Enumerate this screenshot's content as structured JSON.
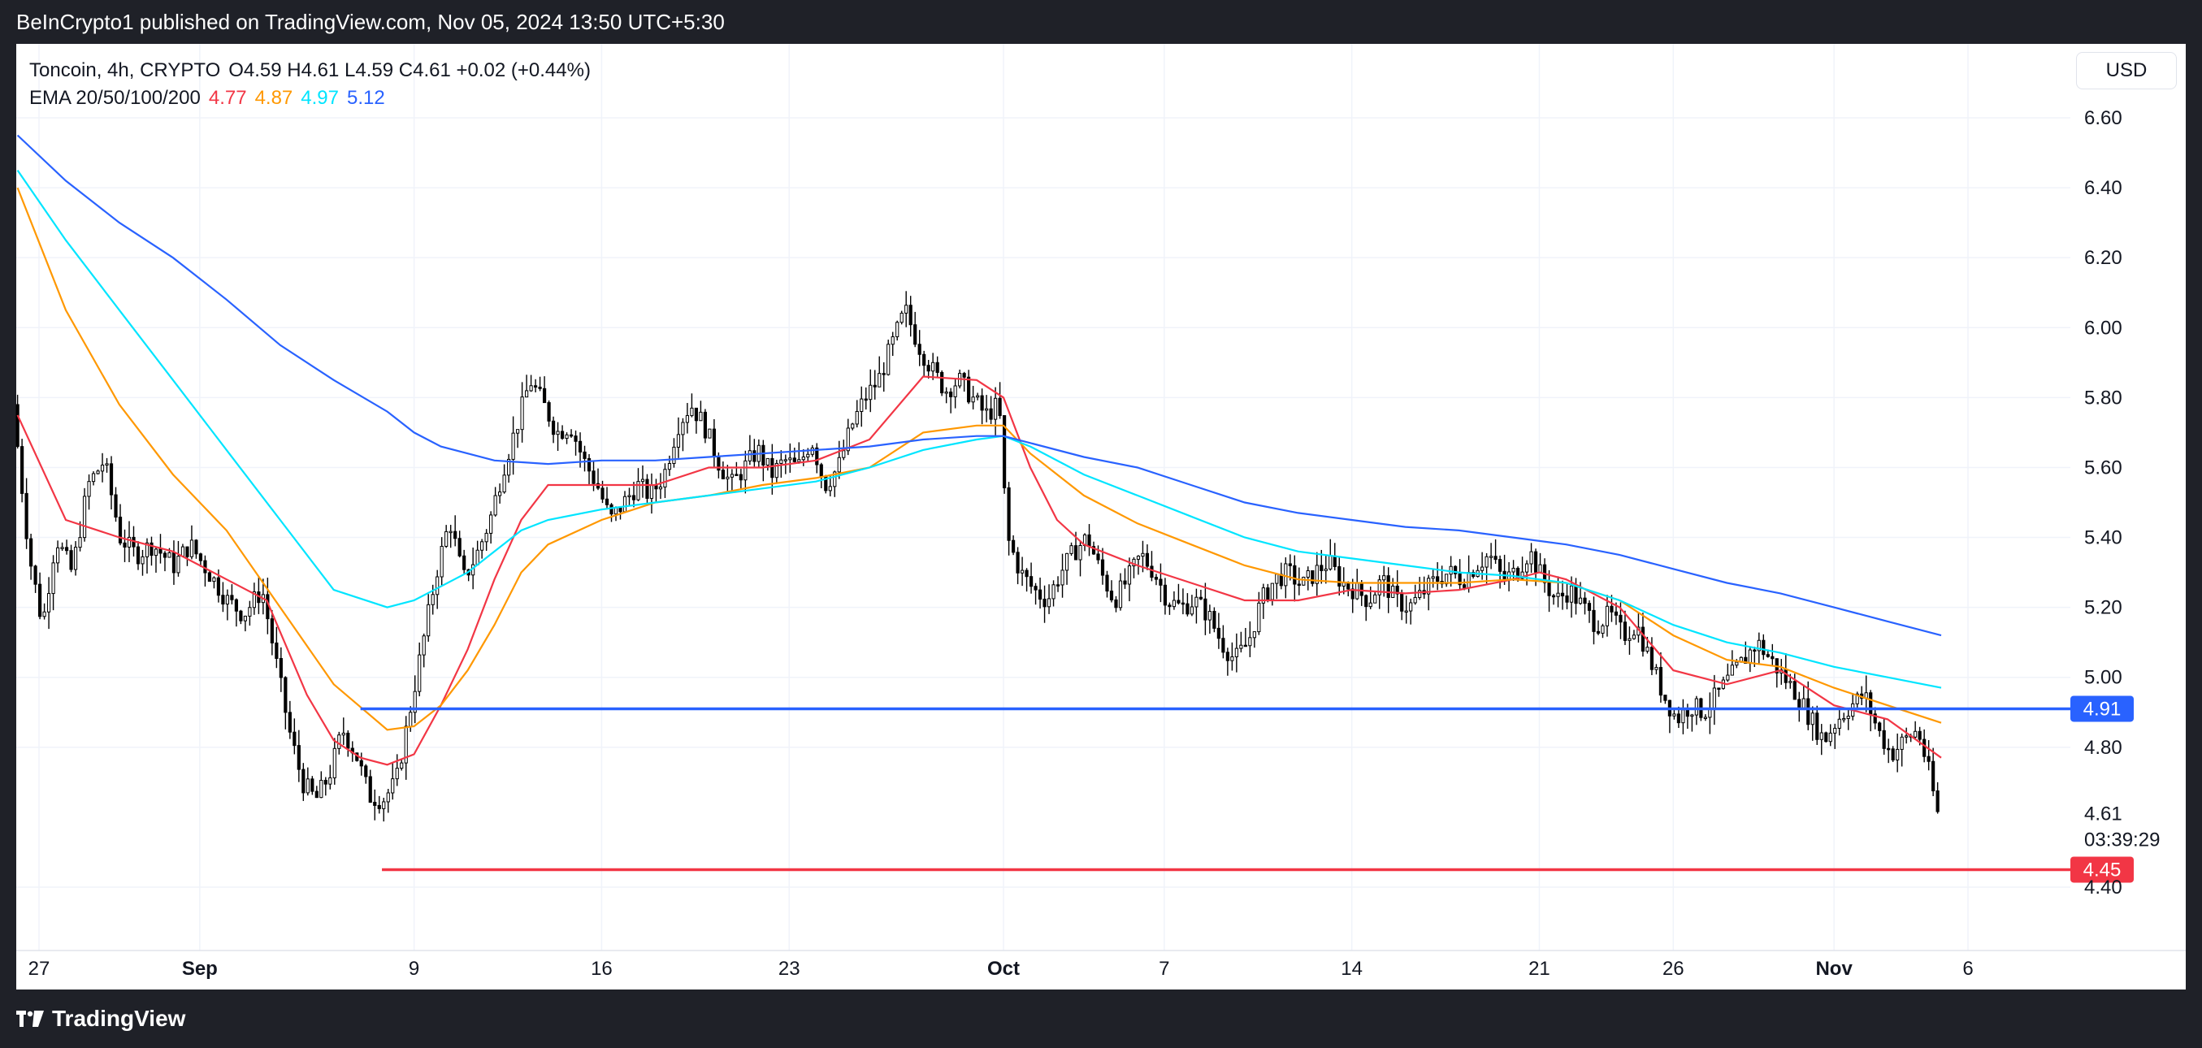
{
  "header": {
    "publisher": "BeInCrypto1 published on TradingView.com, Nov 05, 2024 13:50 UTC+5:30"
  },
  "footer": {
    "brand": "TradingView"
  },
  "toolbar": {
    "currency_label": "USD"
  },
  "legend": {
    "symbol": "Toncoin, 4h, CRYPTO",
    "open_label": "O",
    "open": "4.59",
    "high_label": "H",
    "high": "4.61",
    "low_label": "L",
    "low": "4.59",
    "close_label": "C",
    "close": "4.61",
    "change": "+0.02 (+0.44%)",
    "ema_label": "EMA 20/50/100/200",
    "ema20": "4.77",
    "ema50": "4.87",
    "ema100": "4.97",
    "ema200": "5.12"
  },
  "colors": {
    "ema20": "#f23645",
    "ema50": "#ff9800",
    "ema100": "#00e5ff",
    "ema200": "#2962ff",
    "support_line": "#2962ff",
    "support_low_line": "#f23645",
    "candle": "#000000"
  },
  "chart_data": {
    "type": "candlestick",
    "title": "Toncoin, 4h, CRYPTO",
    "currency": "USD",
    "y_ticks": [
      "6.60",
      "6.40",
      "6.20",
      "6.00",
      "5.80",
      "5.60",
      "5.40",
      "5.20",
      "5.00",
      "4.80",
      "4.40"
    ],
    "ylim": [
      4.32,
      6.62
    ],
    "x_ticks": [
      {
        "label": "27",
        "day": -5,
        "bold": false
      },
      {
        "label": "Sep",
        "day": 1,
        "bold": true
      },
      {
        "label": "9",
        "day": 9,
        "bold": false
      },
      {
        "label": "16",
        "day": 16,
        "bold": false
      },
      {
        "label": "23",
        "day": 23,
        "bold": false
      },
      {
        "label": "Oct",
        "day": 31,
        "bold": true
      },
      {
        "label": "7",
        "day": 37,
        "bold": false
      },
      {
        "label": "14",
        "day": 44,
        "bold": false
      },
      {
        "label": "21",
        "day": 51,
        "bold": false
      },
      {
        "label": "26",
        "day": 56,
        "bold": false
      },
      {
        "label": "Nov",
        "day": 62,
        "bold": true
      },
      {
        "label": "6",
        "day": 67,
        "bold": false
      }
    ],
    "price_path": [
      [
        -5.8,
        5.78
      ],
      [
        -5.2,
        5.35
      ],
      [
        -4.7,
        5.15
      ],
      [
        -4.2,
        5.4
      ],
      [
        -3.6,
        5.3
      ],
      [
        -3.0,
        5.55
      ],
      [
        -2.4,
        5.62
      ],
      [
        -1.8,
        5.4
      ],
      [
        -1.2,
        5.35
      ],
      [
        -0.6,
        5.38
      ],
      [
        0.2,
        5.32
      ],
      [
        0.8,
        5.38
      ],
      [
        1.5,
        5.3
      ],
      [
        2.2,
        5.22
      ],
      [
        2.8,
        5.18
      ],
      [
        3.5,
        5.25
      ],
      [
        4.0,
        5.05
      ],
      [
        4.5,
        4.85
      ],
      [
        5.0,
        4.7
      ],
      [
        5.5,
        4.65
      ],
      [
        6.0,
        4.72
      ],
      [
        6.5,
        4.85
      ],
      [
        7.0,
        4.78
      ],
      [
        7.5,
        4.66
      ],
      [
        8.0,
        4.65
      ],
      [
        8.5,
        4.7
      ],
      [
        9.0,
        4.9
      ],
      [
        9.5,
        5.1
      ],
      [
        10.0,
        5.3
      ],
      [
        10.5,
        5.45
      ],
      [
        11.0,
        5.28
      ],
      [
        11.5,
        5.35
      ],
      [
        12.0,
        5.45
      ],
      [
        12.5,
        5.6
      ],
      [
        13.0,
        5.72
      ],
      [
        13.5,
        5.85
      ],
      [
        14.0,
        5.78
      ],
      [
        14.5,
        5.7
      ],
      [
        15.0,
        5.72
      ],
      [
        15.5,
        5.62
      ],
      [
        16.0,
        5.55
      ],
      [
        16.5,
        5.45
      ],
      [
        17.0,
        5.5
      ],
      [
        17.5,
        5.55
      ],
      [
        18.0,
        5.52
      ],
      [
        18.5,
        5.58
      ],
      [
        19.0,
        5.72
      ],
      [
        19.5,
        5.78
      ],
      [
        20.0,
        5.72
      ],
      [
        20.5,
        5.62
      ],
      [
        21.0,
        5.55
      ],
      [
        21.5,
        5.6
      ],
      [
        22.0,
        5.65
      ],
      [
        22.5,
        5.58
      ],
      [
        23.0,
        5.62
      ],
      [
        23.5,
        5.6
      ],
      [
        24.0,
        5.68
      ],
      [
        24.5,
        5.55
      ],
      [
        25.0,
        5.6
      ],
      [
        25.5,
        5.72
      ],
      [
        26.0,
        5.8
      ],
      [
        26.5,
        5.85
      ],
      [
        27.0,
        5.95
      ],
      [
        27.5,
        6.05
      ],
      [
        28.0,
        5.95
      ],
      [
        28.5,
        5.88
      ],
      [
        29.0,
        5.82
      ],
      [
        29.5,
        5.85
      ],
      [
        30.0,
        5.8
      ],
      [
        30.5,
        5.75
      ],
      [
        31.0,
        5.78
      ],
      [
        31.3,
        5.4
      ],
      [
        31.8,
        5.3
      ],
      [
        32.3,
        5.25
      ],
      [
        32.8,
        5.22
      ],
      [
        33.3,
        5.3
      ],
      [
        33.8,
        5.36
      ],
      [
        34.3,
        5.4
      ],
      [
        34.8,
        5.3
      ],
      [
        35.3,
        5.22
      ],
      [
        35.8,
        5.28
      ],
      [
        36.3,
        5.35
      ],
      [
        36.8,
        5.3
      ],
      [
        37.3,
        5.22
      ],
      [
        37.8,
        5.2
      ],
      [
        38.3,
        5.22
      ],
      [
        38.8,
        5.18
      ],
      [
        39.3,
        5.1
      ],
      [
        39.8,
        5.05
      ],
      [
        40.3,
        5.1
      ],
      [
        40.8,
        5.22
      ],
      [
        41.3,
        5.28
      ],
      [
        41.8,
        5.3
      ],
      [
        42.3,
        5.26
      ],
      [
        42.8,
        5.3
      ],
      [
        43.3,
        5.33
      ],
      [
        43.8,
        5.27
      ],
      [
        44.3,
        5.25
      ],
      [
        44.8,
        5.22
      ],
      [
        45.3,
        5.28
      ],
      [
        45.8,
        5.22
      ],
      [
        46.3,
        5.2
      ],
      [
        46.8,
        5.24
      ],
      [
        47.3,
        5.28
      ],
      [
        47.8,
        5.3
      ],
      [
        48.3,
        5.28
      ],
      [
        48.8,
        5.32
      ],
      [
        49.3,
        5.35
      ],
      [
        49.8,
        5.28
      ],
      [
        50.3,
        5.3
      ],
      [
        50.8,
        5.36
      ],
      [
        51.3,
        5.28
      ],
      [
        51.8,
        5.22
      ],
      [
        52.3,
        5.25
      ],
      [
        52.8,
        5.2
      ],
      [
        53.3,
        5.15
      ],
      [
        53.8,
        5.18
      ],
      [
        54.3,
        5.12
      ],
      [
        54.8,
        5.15
      ],
      [
        55.3,
        5.05
      ],
      [
        55.8,
        4.95
      ],
      [
        56.3,
        4.88
      ],
      [
        56.8,
        4.92
      ],
      [
        57.3,
        4.9
      ],
      [
        57.8,
        4.95
      ],
      [
        58.3,
        5.0
      ],
      [
        58.8,
        5.05
      ],
      [
        59.3,
        5.1
      ],
      [
        59.8,
        5.05
      ],
      [
        60.3,
        5.0
      ],
      [
        60.8,
        4.95
      ],
      [
        61.3,
        4.88
      ],
      [
        61.8,
        4.82
      ],
      [
        62.3,
        4.88
      ],
      [
        62.8,
        4.92
      ],
      [
        63.3,
        4.95
      ],
      [
        63.8,
        4.85
      ],
      [
        64.3,
        4.78
      ],
      [
        64.8,
        4.82
      ],
      [
        65.3,
        4.85
      ],
      [
        65.8,
        4.7
      ],
      [
        66.0,
        4.61
      ]
    ],
    "ema_series": [
      {
        "name": "EMA 20",
        "color": "#f23645",
        "points": [
          [
            -5.8,
            5.75
          ],
          [
            -4,
            5.45
          ],
          [
            -2,
            5.4
          ],
          [
            0,
            5.36
          ],
          [
            2,
            5.28
          ],
          [
            3.5,
            5.22
          ],
          [
            5,
            4.95
          ],
          [
            6,
            4.82
          ],
          [
            7,
            4.77
          ],
          [
            8,
            4.75
          ],
          [
            9,
            4.78
          ],
          [
            10,
            4.92
          ],
          [
            11,
            5.08
          ],
          [
            12,
            5.28
          ],
          [
            13,
            5.45
          ],
          [
            14,
            5.55
          ],
          [
            16,
            5.55
          ],
          [
            18,
            5.55
          ],
          [
            20,
            5.6
          ],
          [
            22,
            5.6
          ],
          [
            24,
            5.62
          ],
          [
            26,
            5.68
          ],
          [
            28,
            5.86
          ],
          [
            30,
            5.85
          ],
          [
            31,
            5.8
          ],
          [
            32,
            5.6
          ],
          [
            33,
            5.45
          ],
          [
            34,
            5.38
          ],
          [
            36,
            5.32
          ],
          [
            38,
            5.27
          ],
          [
            40,
            5.22
          ],
          [
            42,
            5.22
          ],
          [
            44,
            5.25
          ],
          [
            46,
            5.24
          ],
          [
            48,
            5.25
          ],
          [
            50,
            5.28
          ],
          [
            51,
            5.3
          ],
          [
            52,
            5.28
          ],
          [
            54,
            5.2
          ],
          [
            56,
            5.02
          ],
          [
            58,
            4.98
          ],
          [
            60,
            5.02
          ],
          [
            62,
            4.92
          ],
          [
            64,
            4.88
          ],
          [
            66,
            4.77
          ]
        ]
      },
      {
        "name": "EMA 50",
        "color": "#ff9800",
        "points": [
          [
            -5.8,
            6.4
          ],
          [
            -4,
            6.05
          ],
          [
            -2,
            5.78
          ],
          [
            0,
            5.58
          ],
          [
            2,
            5.42
          ],
          [
            4,
            5.2
          ],
          [
            6,
            4.98
          ],
          [
            8,
            4.85
          ],
          [
            9,
            4.86
          ],
          [
            10,
            4.92
          ],
          [
            11,
            5.02
          ],
          [
            12,
            5.15
          ],
          [
            13,
            5.3
          ],
          [
            14,
            5.38
          ],
          [
            16,
            5.45
          ],
          [
            18,
            5.5
          ],
          [
            20,
            5.52
          ],
          [
            22,
            5.55
          ],
          [
            24,
            5.57
          ],
          [
            26,
            5.6
          ],
          [
            28,
            5.7
          ],
          [
            30,
            5.72
          ],
          [
            31,
            5.72
          ],
          [
            32,
            5.64
          ],
          [
            34,
            5.52
          ],
          [
            36,
            5.44
          ],
          [
            38,
            5.38
          ],
          [
            40,
            5.32
          ],
          [
            42,
            5.28
          ],
          [
            44,
            5.27
          ],
          [
            46,
            5.27
          ],
          [
            48,
            5.27
          ],
          [
            50,
            5.28
          ],
          [
            52,
            5.27
          ],
          [
            54,
            5.22
          ],
          [
            56,
            5.12
          ],
          [
            58,
            5.05
          ],
          [
            60,
            5.03
          ],
          [
            62,
            4.97
          ],
          [
            64,
            4.92
          ],
          [
            66,
            4.87
          ]
        ]
      },
      {
        "name": "EMA 100",
        "color": "#00e5ff",
        "points": [
          [
            -5.8,
            6.45
          ],
          [
            -4,
            6.25
          ],
          [
            -2,
            6.05
          ],
          [
            0,
            5.85
          ],
          [
            2,
            5.65
          ],
          [
            4,
            5.45
          ],
          [
            6,
            5.25
          ],
          [
            8,
            5.2
          ],
          [
            9,
            5.22
          ],
          [
            10,
            5.26
          ],
          [
            11,
            5.3
          ],
          [
            12,
            5.36
          ],
          [
            13,
            5.42
          ],
          [
            14,
            5.45
          ],
          [
            16,
            5.48
          ],
          [
            18,
            5.5
          ],
          [
            20,
            5.52
          ],
          [
            22,
            5.54
          ],
          [
            24,
            5.56
          ],
          [
            26,
            5.6
          ],
          [
            28,
            5.65
          ],
          [
            30,
            5.68
          ],
          [
            31,
            5.69
          ],
          [
            32,
            5.66
          ],
          [
            34,
            5.58
          ],
          [
            36,
            5.52
          ],
          [
            38,
            5.46
          ],
          [
            40,
            5.4
          ],
          [
            42,
            5.36
          ],
          [
            44,
            5.34
          ],
          [
            46,
            5.32
          ],
          [
            48,
            5.3
          ],
          [
            50,
            5.29
          ],
          [
            52,
            5.27
          ],
          [
            54,
            5.22
          ],
          [
            56,
            5.15
          ],
          [
            58,
            5.1
          ],
          [
            60,
            5.07
          ],
          [
            62,
            5.03
          ],
          [
            64,
            5.0
          ],
          [
            66,
            4.97
          ]
        ]
      },
      {
        "name": "EMA 200",
        "color": "#2962ff",
        "points": [
          [
            -5.8,
            6.55
          ],
          [
            -4,
            6.42
          ],
          [
            -2,
            6.3
          ],
          [
            0,
            6.2
          ],
          [
            2,
            6.08
          ],
          [
            4,
            5.95
          ],
          [
            6,
            5.85
          ],
          [
            8,
            5.76
          ],
          [
            9,
            5.7
          ],
          [
            10,
            5.66
          ],
          [
            11,
            5.64
          ],
          [
            12,
            5.62
          ],
          [
            14,
            5.61
          ],
          [
            16,
            5.62
          ],
          [
            18,
            5.62
          ],
          [
            20,
            5.63
          ],
          [
            22,
            5.64
          ],
          [
            24,
            5.65
          ],
          [
            26,
            5.66
          ],
          [
            28,
            5.68
          ],
          [
            30,
            5.69
          ],
          [
            31,
            5.69
          ],
          [
            32,
            5.67
          ],
          [
            34,
            5.63
          ],
          [
            36,
            5.6
          ],
          [
            38,
            5.55
          ],
          [
            40,
            5.5
          ],
          [
            42,
            5.47
          ],
          [
            44,
            5.45
          ],
          [
            46,
            5.43
          ],
          [
            48,
            5.42
          ],
          [
            50,
            5.4
          ],
          [
            52,
            5.38
          ],
          [
            54,
            5.35
          ],
          [
            56,
            5.31
          ],
          [
            58,
            5.27
          ],
          [
            60,
            5.24
          ],
          [
            62,
            5.2
          ],
          [
            64,
            5.16
          ],
          [
            66,
            5.12
          ]
        ]
      }
    ],
    "levels": [
      {
        "name": "support",
        "value": 4.91,
        "label": "4.91",
        "color": "#2962ff",
        "from_day": 7.0
      },
      {
        "name": "low",
        "value": 4.45,
        "label": "4.45",
        "color": "#f23645",
        "from_day": 7.8
      }
    ],
    "last_price": {
      "label": "4.61",
      "value": 4.61
    },
    "countdown": "03:39:29",
    "x_domain": [
      -6,
      71
    ]
  }
}
